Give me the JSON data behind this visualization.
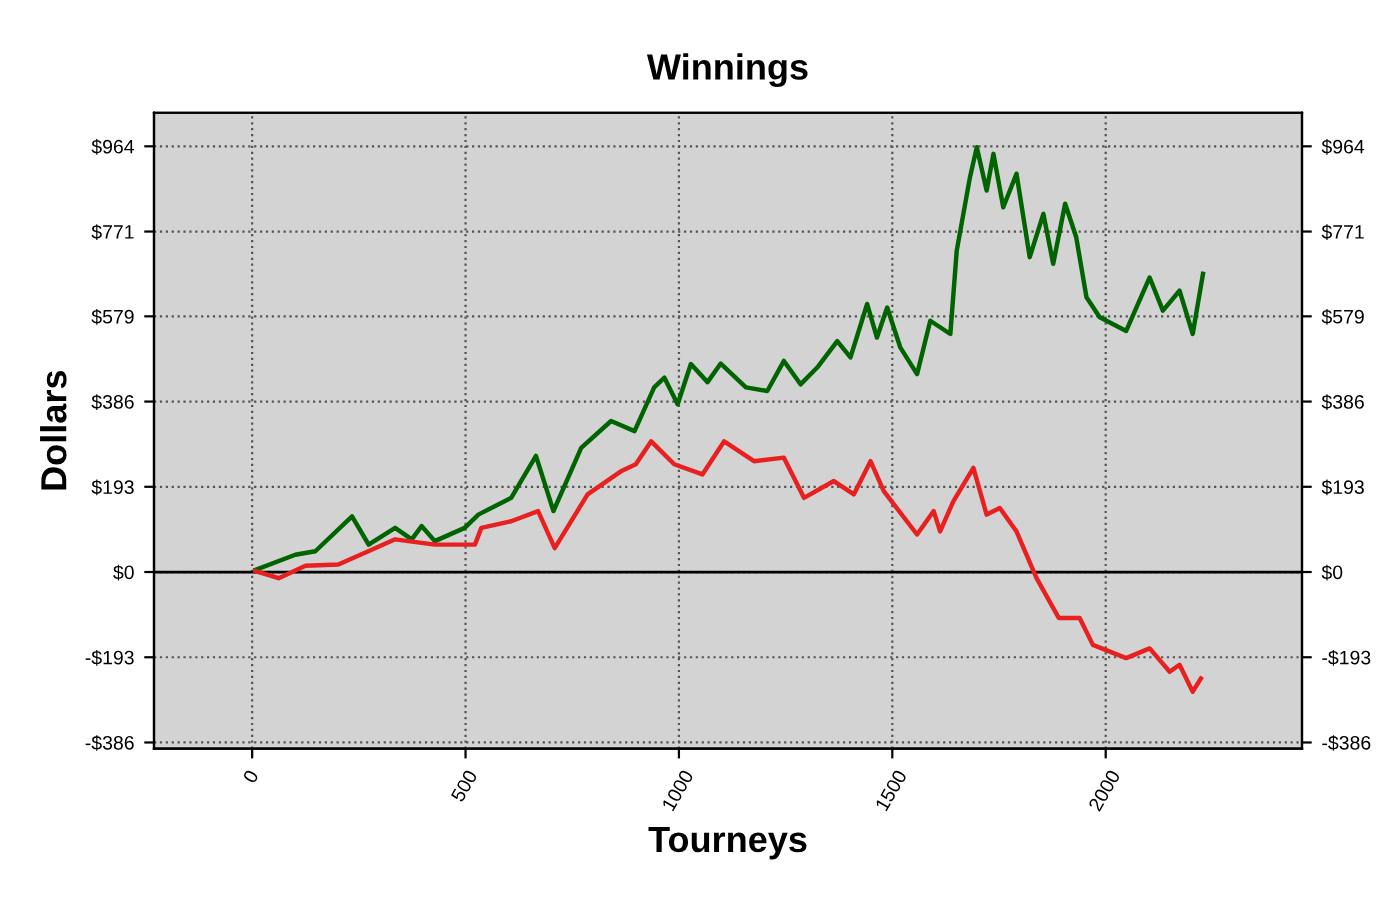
{
  "chart_data": {
    "type": "line",
    "title": "Winnings",
    "xlabel": "Tourneys",
    "ylabel": "Dollars",
    "xlim": [
      -230,
      2460
    ],
    "xticks": [
      0,
      500,
      1000,
      1500,
      2000
    ],
    "ylim": [
      -400,
      1040
    ],
    "yticks": [
      {
        "value": -386,
        "label": "-$386"
      },
      {
        "value": -193,
        "label": "-$193"
      },
      {
        "value": 0,
        "label": "$0"
      },
      {
        "value": 193,
        "label": "$193"
      },
      {
        "value": 386,
        "label": "$386"
      },
      {
        "value": 579,
        "label": "$579"
      },
      {
        "value": 771,
        "label": "$771"
      },
      {
        "value": 964,
        "label": "$964"
      }
    ],
    "y2lim": [
      -400,
      1040
    ],
    "y2ticks": [
      {
        "value": -386,
        "label": "-$386"
      },
      {
        "value": -193,
        "label": "-$193"
      },
      {
        "value": 0,
        "label": "$0"
      },
      {
        "value": 193,
        "label": "$193"
      },
      {
        "value": 386,
        "label": "$386"
      },
      {
        "value": 579,
        "label": "$579"
      },
      {
        "value": 771,
        "label": "$771"
      },
      {
        "value": 964,
        "label": "$964"
      }
    ],
    "grid": true,
    "legend": false,
    "marker": "none",
    "line_style": "solid",
    "ref_lines": [
      {
        "axis": "y",
        "value": 0,
        "color": "#000000",
        "line_style": "solid"
      }
    ],
    "series": [
      {
        "color": "#006400",
        "x": [
          8,
          101,
          148,
          234,
          273,
          335,
          374,
          397,
          428,
          498,
          530,
          607,
          665,
          706,
          771,
          841,
          896,
          942,
          966,
          997,
          1028,
          1067,
          1098,
          1157,
          1207,
          1246,
          1285,
          1324,
          1371,
          1402,
          1441,
          1464,
          1488,
          1519,
          1558,
          1589,
          1636,
          1651,
          1682,
          1698,
          1721,
          1737,
          1760,
          1791,
          1822,
          1854,
          1877,
          1905,
          1931,
          1955,
          1986,
          2048,
          2103,
          2134,
          2173,
          2204,
          2228
        ],
        "values": [
          5,
          39,
          47,
          126,
          62,
          100,
          74,
          104,
          70,
          100,
          130,
          168,
          263,
          138,
          281,
          342,
          319,
          418,
          440,
          380,
          471,
          430,
          472,
          418,
          410,
          478,
          425,
          463,
          523,
          486,
          607,
          531,
          599,
          508,
          448,
          569,
          539,
          728,
          894,
          962,
          864,
          947,
          826,
          902,
          713,
          811,
          698,
          834,
          758,
          622,
          577,
          546,
          667,
          592,
          637,
          539,
          675
        ]
      },
      {
        "color": "#e82020",
        "x": [
          8,
          62,
          125,
          202,
          288,
          335,
          428,
          522,
          537,
          607,
          670,
          709,
          786,
          864,
          899,
          935,
          989,
          1055,
          1106,
          1176,
          1246,
          1293,
          1363,
          1410,
          1449,
          1480,
          1558,
          1597,
          1612,
          1643,
          1690,
          1721,
          1752,
          1791,
          1838,
          1890,
          1939,
          1970,
          2048,
          2103,
          2150,
          2173,
          2204,
          2223
        ],
        "values": [
          2,
          -14,
          14,
          17,
          54,
          74,
          62,
          62,
          100,
          115,
          138,
          54,
          176,
          228,
          244,
          296,
          244,
          221,
          296,
          251,
          259,
          168,
          206,
          176,
          251,
          183,
          85,
          138,
          92,
          160,
          236,
          130,
          145,
          92,
          -14,
          -104,
          -104,
          -165,
          -195,
          -173,
          -226,
          -210,
          -271,
          -241
        ]
      }
    ]
  }
}
